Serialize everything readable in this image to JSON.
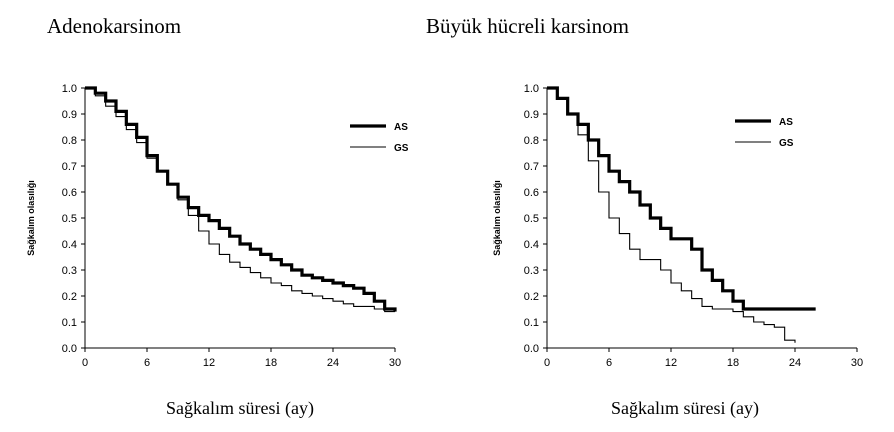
{
  "chart_data": [
    {
      "type": "line",
      "title": "Adenokarsinom",
      "xlabel": "Sağkalım süresi (ay)",
      "ylabel": "Sağkalım olasılığı",
      "xlim": [
        0,
        30
      ],
      "ylim": [
        0,
        1
      ],
      "xticks": [
        "0",
        "6",
        "12",
        "18",
        "24",
        "30"
      ],
      "yticks": [
        "0.0",
        "0.1",
        "0.2",
        "0.3",
        "0.4",
        "0.5",
        "0.6",
        "0.7",
        "0.8",
        "0.9",
        "1.0"
      ],
      "legend_position": "top-right",
      "series": [
        {
          "name": "AS",
          "style": "thick",
          "x": [
            0,
            1,
            2,
            3,
            4,
            5,
            6,
            7,
            8,
            9,
            10,
            11,
            12,
            13,
            14,
            15,
            16,
            17,
            18,
            19,
            20,
            21,
            22,
            23,
            24,
            25,
            26,
            27,
            28,
            29,
            30
          ],
          "y": [
            1.0,
            0.98,
            0.95,
            0.91,
            0.86,
            0.81,
            0.74,
            0.68,
            0.63,
            0.58,
            0.54,
            0.51,
            0.49,
            0.46,
            0.43,
            0.4,
            0.38,
            0.36,
            0.34,
            0.32,
            0.3,
            0.28,
            0.27,
            0.26,
            0.25,
            0.24,
            0.23,
            0.21,
            0.18,
            0.15,
            0.14
          ]
        },
        {
          "name": "GS",
          "style": "thin",
          "x": [
            0,
            1,
            2,
            3,
            4,
            5,
            6,
            7,
            8,
            9,
            10,
            11,
            12,
            13,
            14,
            15,
            16,
            17,
            18,
            19,
            20,
            21,
            22,
            23,
            24,
            25,
            26,
            27,
            28,
            29,
            30
          ],
          "y": [
            1.0,
            0.97,
            0.93,
            0.89,
            0.84,
            0.79,
            0.73,
            0.68,
            0.63,
            0.57,
            0.51,
            0.45,
            0.4,
            0.36,
            0.33,
            0.31,
            0.29,
            0.27,
            0.25,
            0.24,
            0.22,
            0.21,
            0.2,
            0.19,
            0.18,
            0.17,
            0.16,
            0.16,
            0.15,
            0.14,
            0.14
          ]
        }
      ]
    },
    {
      "type": "line",
      "title": "Büyük hücreli karsinom",
      "xlabel": "Sağkalım süresi (ay)",
      "ylabel": "Sağkalım olasılığı",
      "xlim": [
        0,
        30
      ],
      "ylim": [
        0,
        1
      ],
      "xticks": [
        "0",
        "6",
        "12",
        "18",
        "24",
        "30"
      ],
      "yticks": [
        "0.0",
        "0.1",
        "0.2",
        "0.3",
        "0.4",
        "0.5",
        "0.6",
        "0.7",
        "0.8",
        "0.9",
        "1.0"
      ],
      "legend_position": "top-right",
      "series": [
        {
          "name": "AS",
          "style": "thick",
          "x": [
            0,
            1,
            2,
            3,
            4,
            5,
            6,
            7,
            8,
            9,
            10,
            11,
            12,
            13,
            14,
            15,
            16,
            17,
            18,
            19,
            20,
            21,
            22,
            23,
            24,
            25,
            26
          ],
          "y": [
            1.0,
            0.96,
            0.9,
            0.86,
            0.8,
            0.74,
            0.68,
            0.64,
            0.6,
            0.55,
            0.5,
            0.46,
            0.42,
            0.42,
            0.38,
            0.3,
            0.26,
            0.22,
            0.18,
            0.15,
            0.15,
            0.15,
            0.15,
            0.15,
            0.15,
            0.15,
            0.15
          ]
        },
        {
          "name": "GS",
          "style": "thin",
          "x": [
            0,
            1,
            2,
            3,
            4,
            5,
            6,
            7,
            8,
            9,
            10,
            11,
            12,
            13,
            14,
            15,
            16,
            17,
            18,
            19,
            20,
            21,
            22,
            23,
            24
          ],
          "y": [
            1.0,
            0.96,
            0.9,
            0.82,
            0.72,
            0.6,
            0.5,
            0.44,
            0.38,
            0.34,
            0.34,
            0.3,
            0.25,
            0.22,
            0.19,
            0.16,
            0.15,
            0.15,
            0.14,
            0.12,
            0.1,
            0.09,
            0.08,
            0.03,
            0.02
          ]
        }
      ]
    }
  ]
}
